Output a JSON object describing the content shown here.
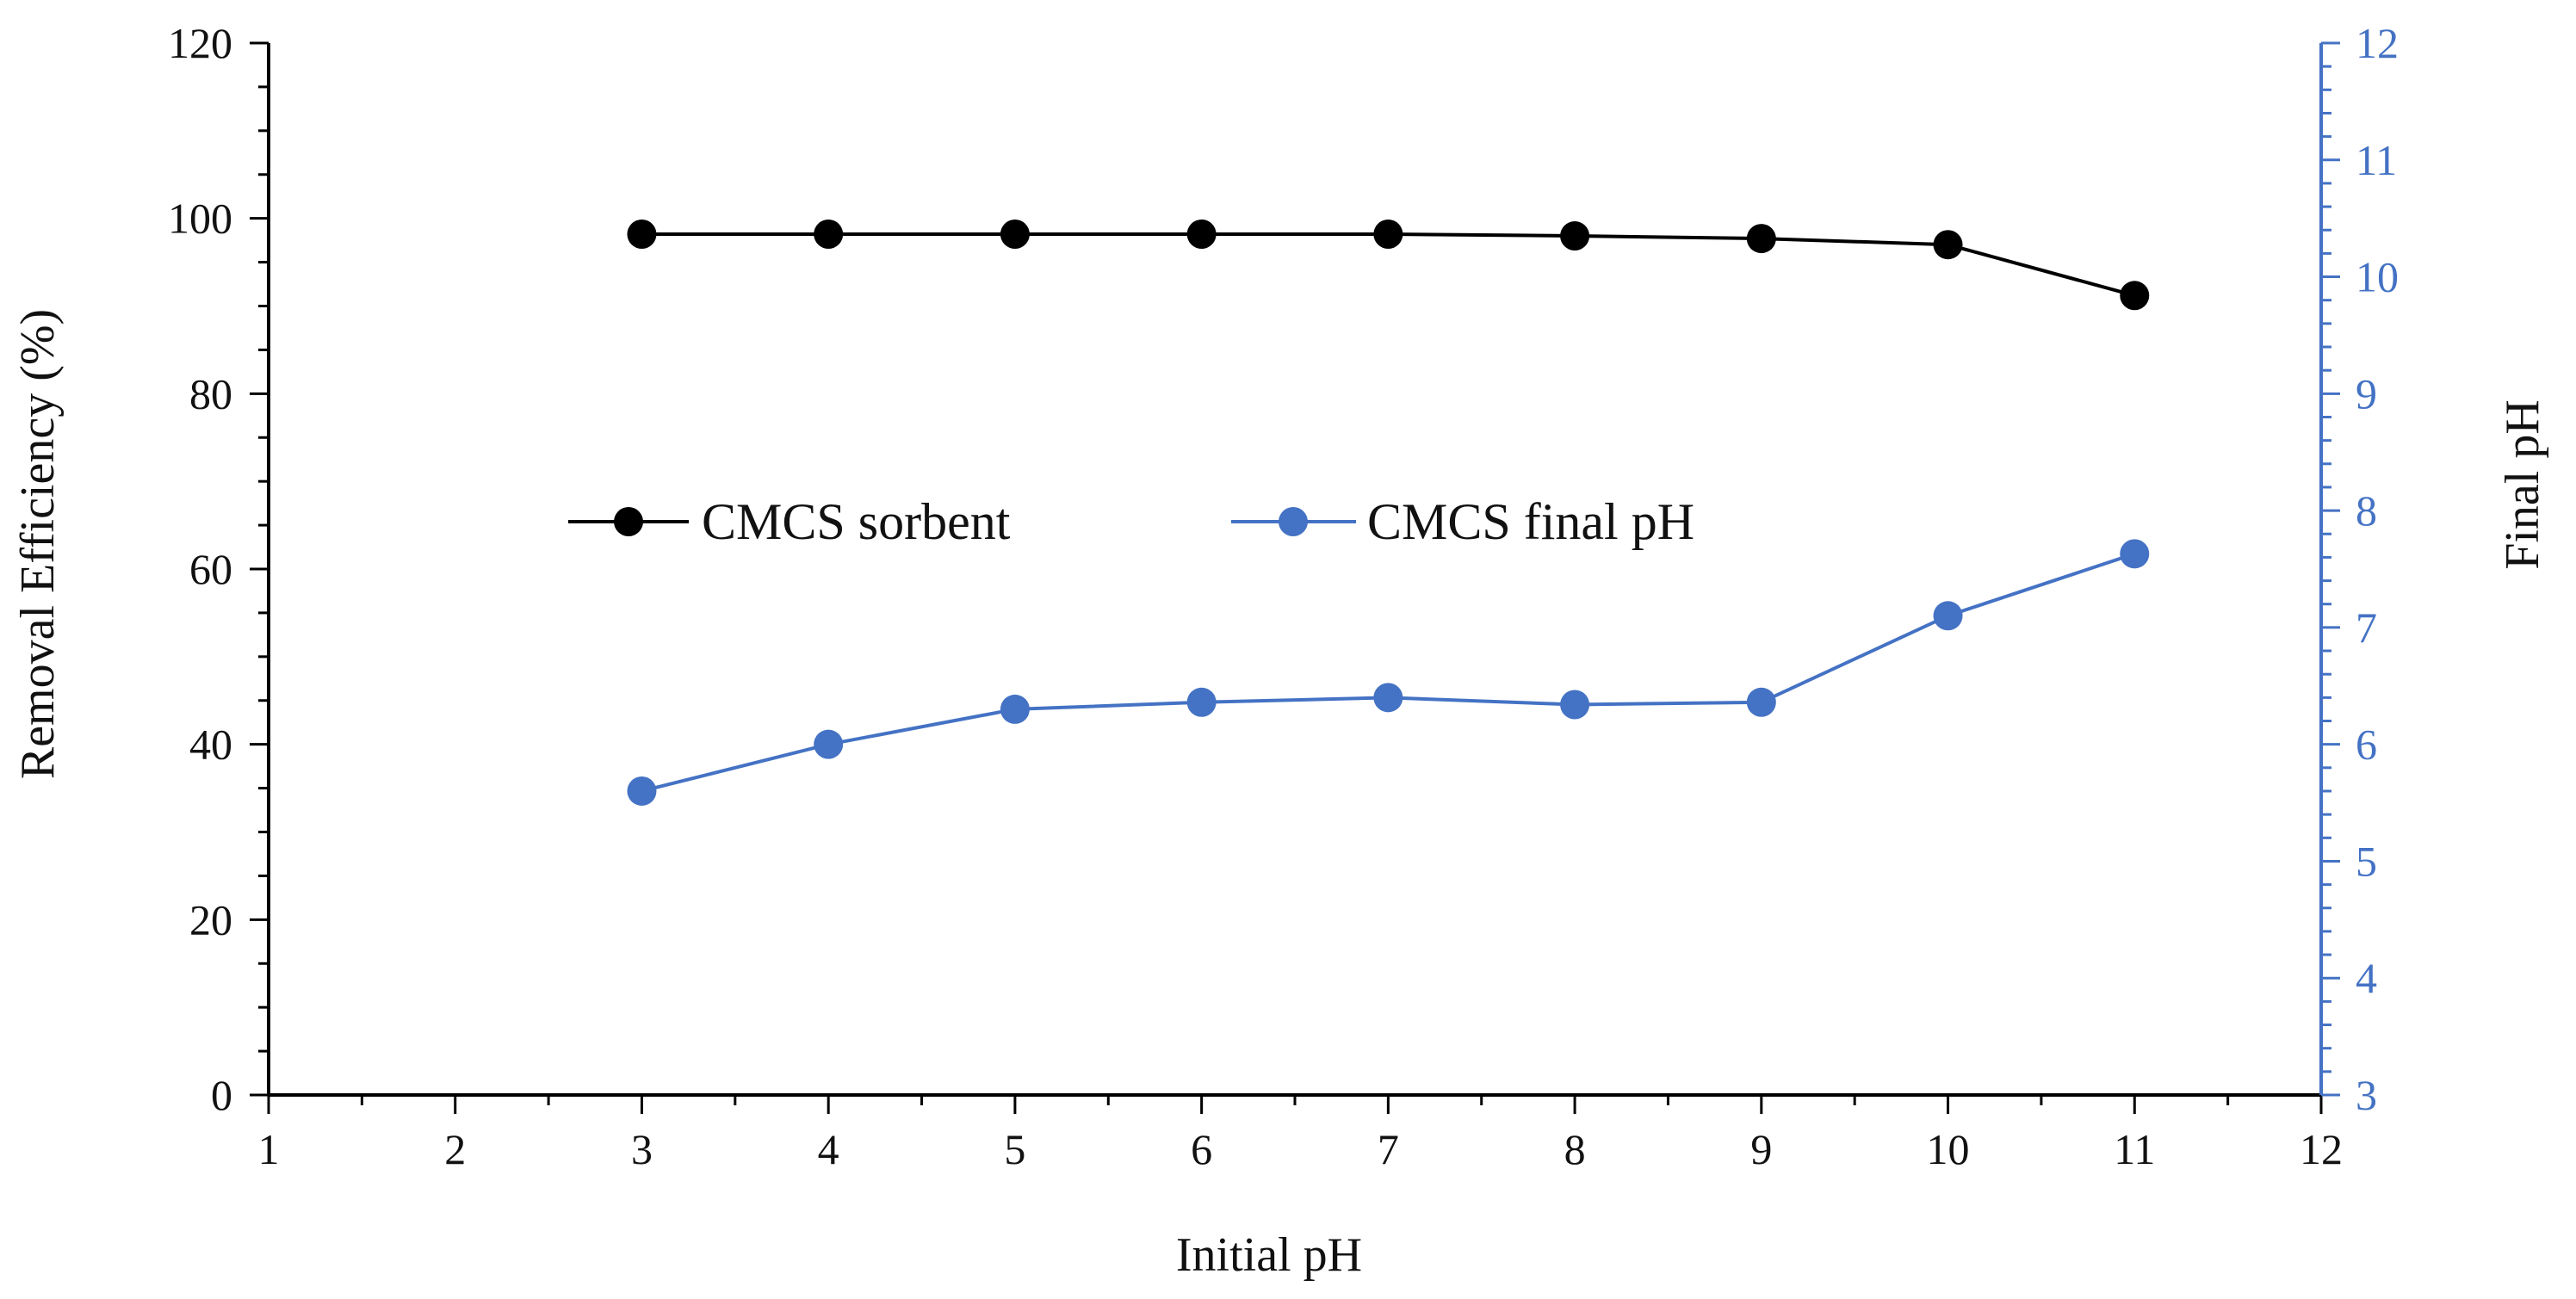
{
  "chart_data": {
    "type": "line",
    "xlabel": "Initial pH",
    "ylabel_left": "Removal Efficiency (%)",
    "ylabel_right": "Final pH",
    "xlim": [
      1,
      12
    ],
    "ylim_left": [
      0,
      120
    ],
    "ylim_right": [
      3,
      12
    ],
    "x_ticks": [
      1,
      2,
      3,
      4,
      5,
      6,
      7,
      8,
      9,
      10,
      11,
      12
    ],
    "y_ticks_left": [
      0,
      20,
      40,
      60,
      80,
      100,
      120
    ],
    "y_ticks_right": [
      3,
      4,
      5,
      6,
      7,
      8,
      9,
      10,
      11,
      12
    ],
    "grid": false,
    "legend_position": "middle-center",
    "series": [
      {
        "name": "CMCS sorbent",
        "axis": "left",
        "color": "#000000",
        "x": [
          3,
          4,
          5,
          6,
          7,
          8,
          9,
          10,
          11
        ],
        "values": [
          98.2,
          98.2,
          98.2,
          98.2,
          98.2,
          98.0,
          97.7,
          97.0,
          91.2
        ]
      },
      {
        "name": "CMCS final pH",
        "axis": "right",
        "color": "#4472C4",
        "x": [
          3,
          4,
          5,
          6,
          7,
          8,
          9,
          10,
          11
        ],
        "values": [
          5.6,
          6.0,
          6.3,
          6.36,
          6.4,
          6.34,
          6.36,
          7.1,
          7.63
        ]
      }
    ],
    "right_axis_color": "#4472C4"
  }
}
